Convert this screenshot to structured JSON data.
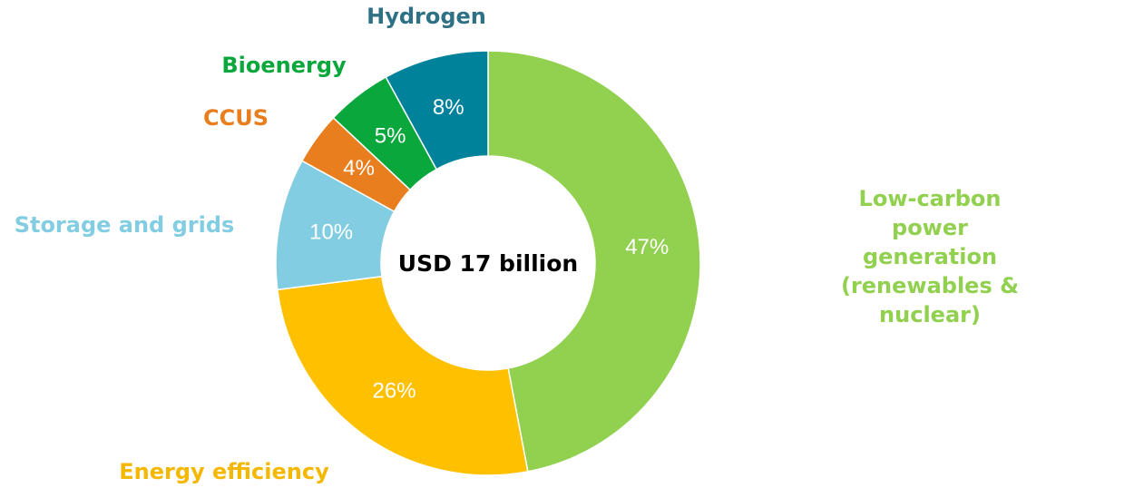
{
  "chart_data": {
    "type": "donut",
    "center_label": "USD 17 billion",
    "categories": [
      "Low-carbon power generation\n(renewables & nuclear)",
      "Energy efficiency",
      "Storage and grids",
      "CCUS",
      "Bioenergy",
      "Hydrogen"
    ],
    "values": [
      47,
      26,
      10,
      4,
      5,
      8
    ],
    "value_labels": [
      "47%",
      "26%",
      "10%",
      "4%",
      "5%",
      "8%"
    ],
    "colors": [
      "#92d050",
      "#ffc000",
      "#83cde2",
      "#e97e1e",
      "#0aa83c",
      "#00829b"
    ],
    "label_colors": [
      "#92d050",
      "#f5b800",
      "#83cde2",
      "#e97e1e",
      "#0aa83c",
      "#2e7185"
    ]
  }
}
